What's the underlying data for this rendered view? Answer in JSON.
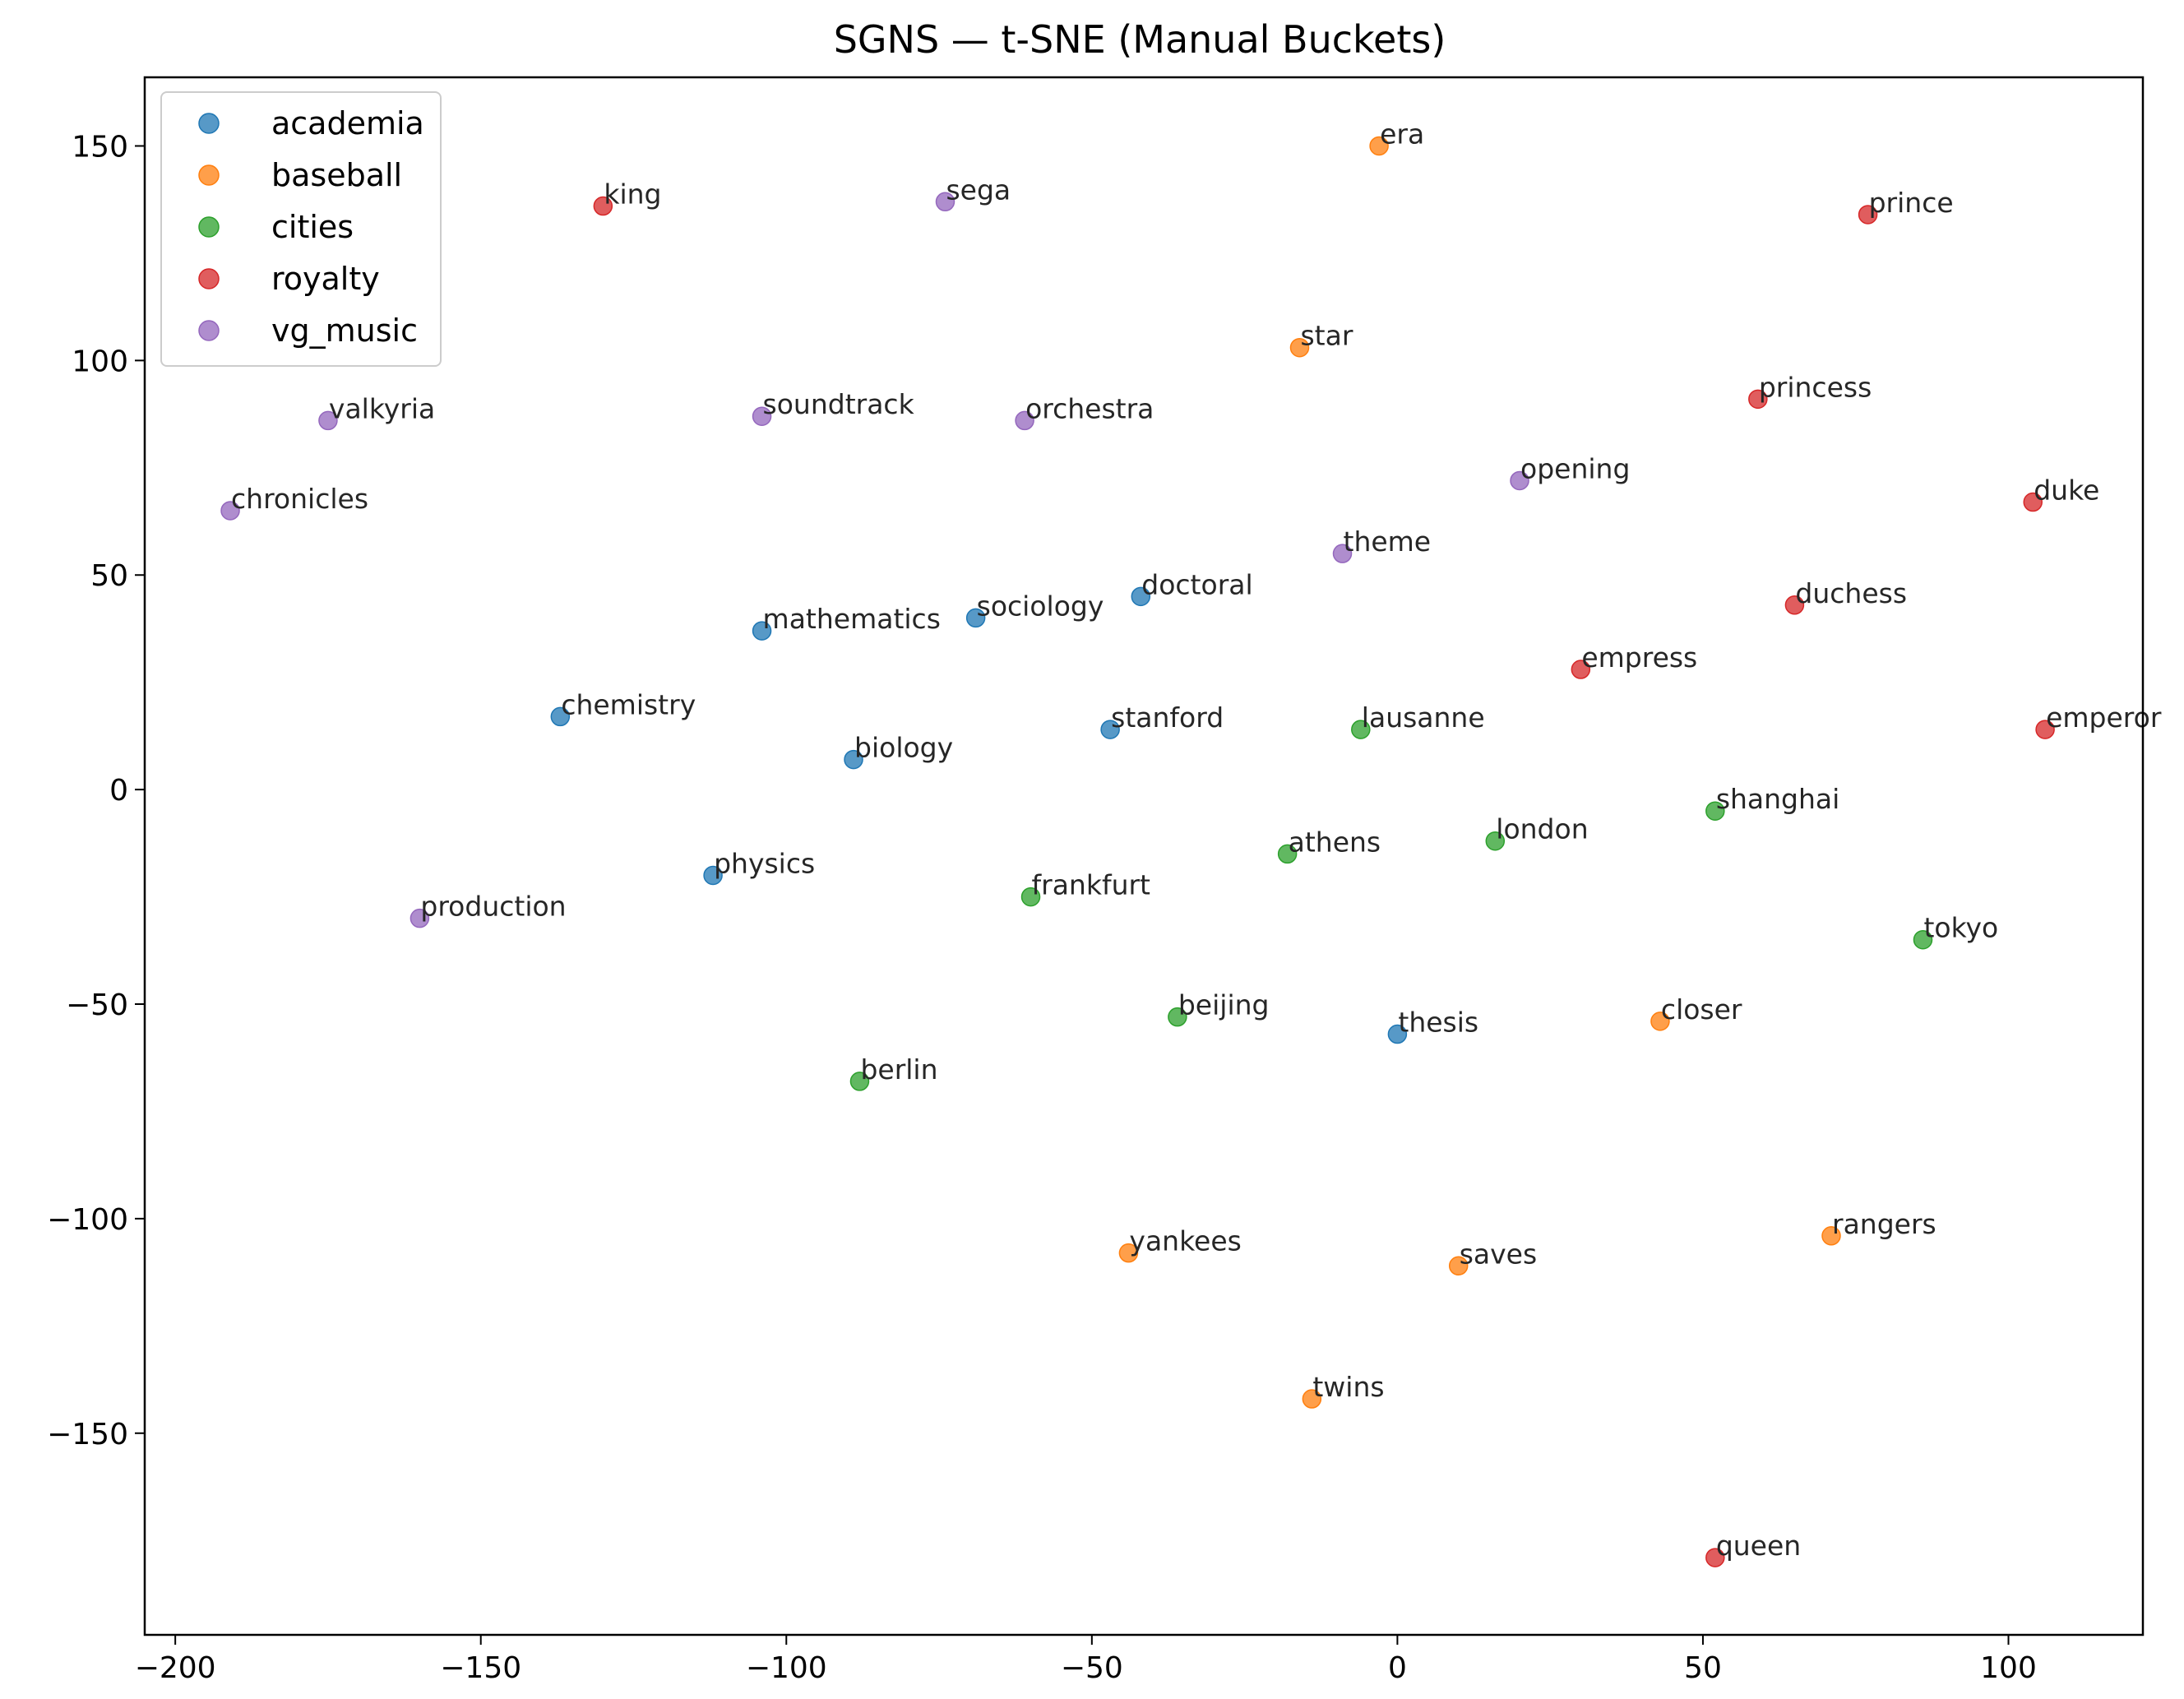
{
  "chart_data": {
    "type": "scatter",
    "title": "SGNS — t-SNE (Manual Buckets)",
    "xlabel": "",
    "ylabel": "",
    "xlim": [
      -205,
      122
    ],
    "ylim": [
      -197,
      166
    ],
    "xticks": [
      -200,
      -150,
      -100,
      -50,
      0,
      50,
      100
    ],
    "yticks": [
      150,
      100,
      50,
      0,
      -50,
      -100,
      -150
    ],
    "grid": false,
    "legend_position": "top-left",
    "series": [
      {
        "name": "academia",
        "color": "#1f77b4",
        "points": [
          {
            "label": "chemistry",
            "x": -137,
            "y": 17
          },
          {
            "label": "mathematics",
            "x": -104,
            "y": 37
          },
          {
            "label": "sociology",
            "x": -69,
            "y": 40
          },
          {
            "label": "doctoral",
            "x": -42,
            "y": 45
          },
          {
            "label": "biology",
            "x": -89,
            "y": 7
          },
          {
            "label": "stanford",
            "x": -47,
            "y": 14
          },
          {
            "label": "physics",
            "x": -112,
            "y": -20
          },
          {
            "label": "thesis",
            "x": 0,
            "y": -57
          }
        ]
      },
      {
        "name": "baseball",
        "color": "#ff7f0e",
        "points": [
          {
            "label": "era",
            "x": -3,
            "y": 150
          },
          {
            "label": "star",
            "x": -16,
            "y": 103
          },
          {
            "label": "closer",
            "x": 43,
            "y": -54
          },
          {
            "label": "yankees",
            "x": -44,
            "y": -108
          },
          {
            "label": "saves",
            "x": 10,
            "y": -111
          },
          {
            "label": "rangers",
            "x": 71,
            "y": -104
          },
          {
            "label": "twins",
            "x": -14,
            "y": -142
          }
        ]
      },
      {
        "name": "cities",
        "color": "#2ca02c",
        "points": [
          {
            "label": "lausanne",
            "x": -6,
            "y": 14
          },
          {
            "label": "shanghai",
            "x": 52,
            "y": -5
          },
          {
            "label": "athens",
            "x": -18,
            "y": -15
          },
          {
            "label": "london",
            "x": 16,
            "y": -12
          },
          {
            "label": "frankfurt",
            "x": -60,
            "y": -25
          },
          {
            "label": "tokyo",
            "x": 86,
            "y": -35
          },
          {
            "label": "beijing",
            "x": -36,
            "y": -53
          },
          {
            "label": "berlin",
            "x": -88,
            "y": -68
          }
        ]
      },
      {
        "name": "royalty",
        "color": "#d62728",
        "points": [
          {
            "label": "king",
            "x": -130,
            "y": 136
          },
          {
            "label": "prince",
            "x": 77,
            "y": 134
          },
          {
            "label": "princess",
            "x": 59,
            "y": 91
          },
          {
            "label": "duke",
            "x": 104,
            "y": 67
          },
          {
            "label": "duchess",
            "x": 65,
            "y": 43
          },
          {
            "label": "empress",
            "x": 30,
            "y": 28
          },
          {
            "label": "emperor",
            "x": 106,
            "y": 14
          },
          {
            "label": "queen",
            "x": 52,
            "y": -179
          }
        ]
      },
      {
        "name": "vg_music",
        "color": "#9467bd",
        "points": [
          {
            "label": "sega",
            "x": -74,
            "y": 137
          },
          {
            "label": "valkyria",
            "x": -175,
            "y": 86
          },
          {
            "label": "soundtrack",
            "x": -104,
            "y": 87
          },
          {
            "label": "orchestra",
            "x": -61,
            "y": 86
          },
          {
            "label": "chronicles",
            "x": -191,
            "y": 65
          },
          {
            "label": "opening",
            "x": 20,
            "y": 72
          },
          {
            "label": "theme",
            "x": -9,
            "y": 55
          },
          {
            "label": "production",
            "x": -160,
            "y": -30
          }
        ]
      }
    ]
  }
}
